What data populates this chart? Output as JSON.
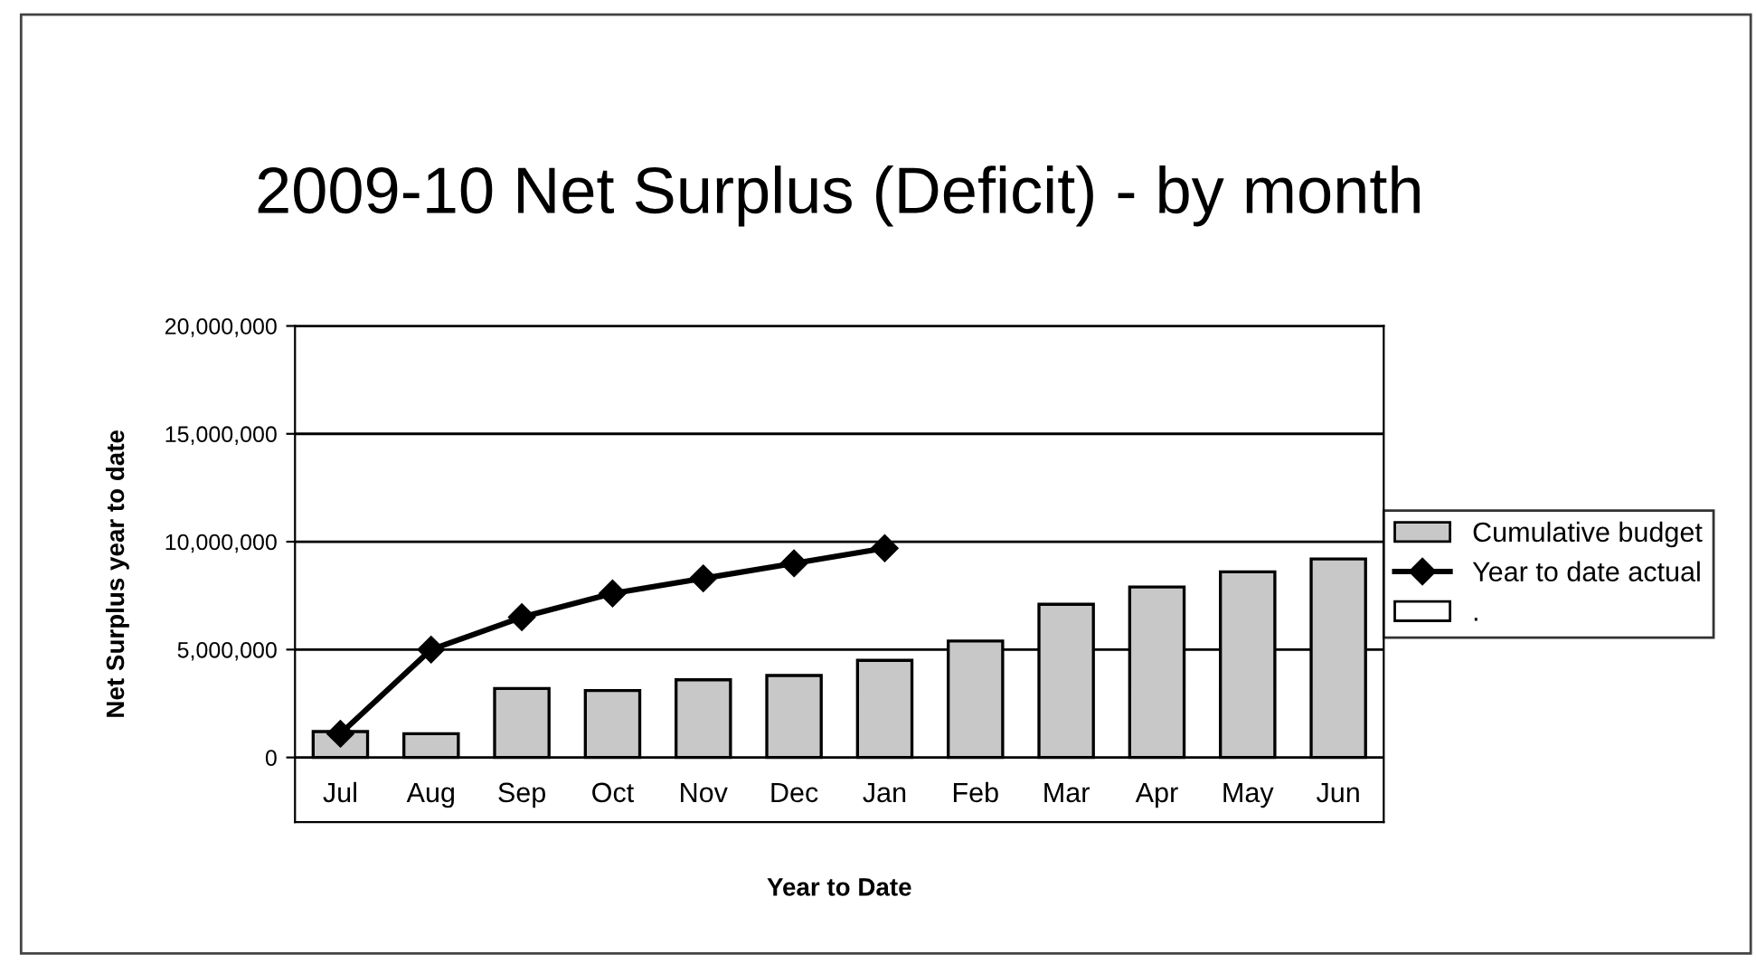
{
  "chart_data": {
    "type": "bar",
    "title": "2009-10 Net Surplus (Deficit) - by month",
    "xlabel": "Year to Date",
    "ylabel": "Net Surplus year to date",
    "categories": [
      "Jul",
      "Aug",
      "Sep",
      "Oct",
      "Nov",
      "Dec",
      "Jan",
      "Feb",
      "Mar",
      "Apr",
      "May",
      "Jun"
    ],
    "series": [
      {
        "name": "Cumulative budget",
        "color": "#c8c8c8",
        "values": [
          1200000,
          1100000,
          3200000,
          3100000,
          3600000,
          3800000,
          4500000,
          5400000,
          7100000,
          7900000,
          8600000,
          9200000
        ]
      },
      {
        "name": "Year to date actual",
        "type": "line",
        "color": "#000000",
        "marker": "diamond",
        "values": [
          1100000,
          5000000,
          6500000,
          7600000,
          8300000,
          9000000,
          9700000,
          null,
          null,
          null,
          null,
          null
        ]
      },
      {
        "name": ".",
        "color": "#ffffff",
        "values": [
          null,
          null,
          null,
          null,
          null,
          null,
          null,
          null,
          null,
          null,
          null,
          null
        ]
      }
    ],
    "ylim": [
      -3000000,
      20000000
    ],
    "yticks": [
      0,
      {
        "value": 5000000,
        "label": "5,000,000"
      },
      {
        "value": 10000000,
        "label": "10,000,000"
      },
      {
        "value": 15000000,
        "label": "15,000,000"
      },
      {
        "value": 20000000,
        "label": "20,000,000"
      }
    ],
    "grid": "y",
    "legend": "right"
  }
}
